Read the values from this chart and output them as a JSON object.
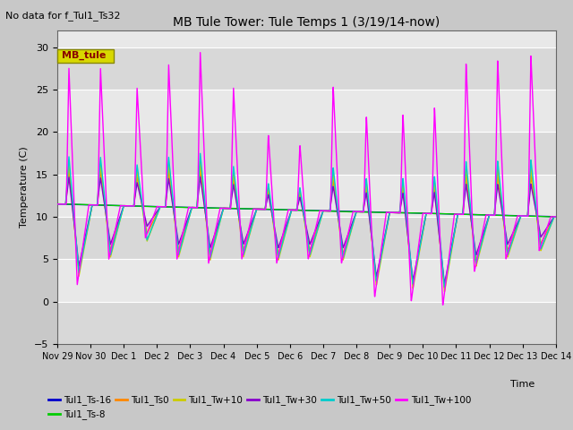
{
  "title": "MB Tule Tower: Tule Temps 1 (3/19/14-now)",
  "top_left_text": "No data for f_Tul1_Ts32",
  "ylabel": "Temperature (C)",
  "xlabel": "Time",
  "ylim": [
    -5,
    32
  ],
  "yticks": [
    -5,
    0,
    5,
    10,
    15,
    20,
    25,
    30
  ],
  "bg_light": "#e8e8e8",
  "bg_dark": "#d0d0d0",
  "legend_box_label": "MB_tule",
  "legend_box_facecolor": "#d8d800",
  "legend_box_edgecolor": "#888800",
  "legend_box_text_color": "#880000",
  "series_order": [
    "Tul1_Ts-16",
    "Tul1_Ts-8",
    "Tul1_Ts0",
    "Tul1_Tw+10",
    "Tul1_Tw+30",
    "Tul1_Tw+50",
    "Tul1_Tw+100"
  ],
  "series_colors": {
    "Tul1_Ts-16": "#0000cc",
    "Tul1_Ts-8": "#00cc00",
    "Tul1_Ts0": "#ff8800",
    "Tul1_Tw+10": "#cccc00",
    "Tul1_Tw+30": "#8800cc",
    "Tul1_Tw+50": "#00cccc",
    "Tul1_Tw+100": "#ff00ff"
  },
  "xtick_labels": [
    "Nov 29",
    "Nov 30",
    "Dec 1",
    "Dec 2",
    "Dec 3",
    "Dec 4",
    "Dec 5",
    "Dec 6",
    "Dec 7",
    "Dec 8",
    "Dec 9",
    "Dec 10",
    "Dec 11",
    "Dec 12",
    "Dec 13",
    "Dec 14"
  ]
}
